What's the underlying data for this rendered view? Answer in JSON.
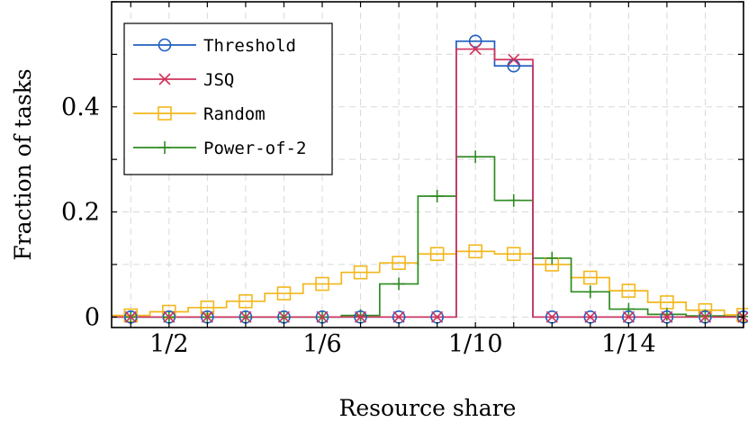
{
  "chart_data": {
    "type": "line",
    "title": "",
    "xlabel": "Resource share",
    "ylabel": "Fraction of tasks",
    "x_tick_labels": [
      "1/2",
      "1/6",
      "1/10",
      "1/14"
    ],
    "y_tick_labels": [
      "0",
      "0.2",
      "0.4"
    ],
    "x_ticks": [
      2,
      6,
      10,
      14
    ],
    "y_ticks": [
      0,
      0.2,
      0.4
    ],
    "x": [
      1,
      2,
      3,
      4,
      5,
      6,
      7,
      8,
      9,
      10,
      11,
      12,
      13,
      14,
      15,
      16,
      17
    ],
    "xlim": [
      0.5,
      17
    ],
    "ylim": [
      -0.02,
      0.6
    ],
    "grid": true,
    "step": true,
    "legend_position": "top-left",
    "series": [
      {
        "name": "Threshold",
        "color": "#1f5fbf",
        "marker": "circle",
        "values": [
          0,
          0,
          0,
          0,
          0,
          0,
          0,
          0,
          0,
          0.525,
          0.478,
          0,
          0,
          0,
          0,
          0,
          0
        ]
      },
      {
        "name": "JSQ",
        "color": "#d0325c",
        "marker": "x",
        "values": [
          0,
          0,
          0,
          0,
          0,
          0,
          0,
          0,
          0,
          0.51,
          0.49,
          0,
          0,
          0,
          0,
          0,
          0
        ]
      },
      {
        "name": "Random",
        "color": "#f2b71b",
        "marker": "square",
        "values": [
          0.003,
          0.01,
          0.018,
          0.03,
          0.045,
          0.063,
          0.085,
          0.103,
          0.12,
          0.125,
          0.12,
          0.1,
          0.075,
          0.05,
          0.028,
          0.013,
          0.004
        ]
      },
      {
        "name": "Power-of-2",
        "color": "#2e8b22",
        "marker": "plus",
        "values": [
          0,
          0,
          0,
          0,
          0,
          0,
          0.003,
          0.063,
          0.23,
          0.305,
          0.222,
          0.112,
          0.048,
          0.015,
          0.005,
          0.002,
          0.001
        ]
      }
    ]
  }
}
